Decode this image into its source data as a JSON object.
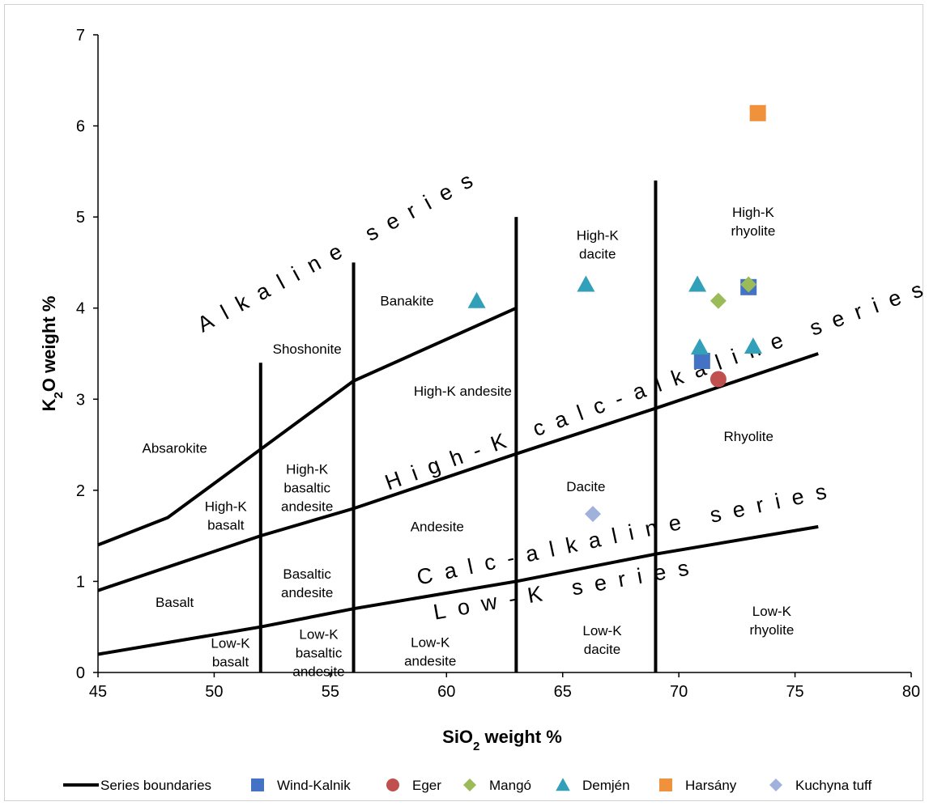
{
  "chart_data": {
    "type": "scatter",
    "xlabel": "SiO₂ weight %",
    "xlabel_main": "SiO",
    "xlabel_sub": "2",
    "xlabel_rest": " weight %",
    "ylabel": "K₂O weight %",
    "ylabel_main": "K",
    "ylabel_sub": "2",
    "ylabel_rest": "O weight %",
    "xlim": [
      45,
      80
    ],
    "ylim": [
      0,
      7
    ],
    "x_ticks": [
      "45",
      "50",
      "55",
      "60",
      "65",
      "70",
      "75",
      "80"
    ],
    "y_ticks": [
      "0",
      "1",
      "2",
      "3",
      "4",
      "5",
      "6",
      "7"
    ],
    "grid": false,
    "legend_position": "bottom",
    "boundaries": {
      "name": "Series boundaries",
      "color": "#000000",
      "lines": [
        [
          [
            45,
            1.4
          ],
          [
            48,
            1.7
          ],
          [
            52,
            2.45
          ],
          [
            56,
            3.2
          ],
          [
            63,
            4.0
          ]
        ],
        [
          [
            45,
            0.9
          ],
          [
            52,
            1.5
          ],
          [
            56,
            1.8
          ],
          [
            63,
            2.4
          ],
          [
            69,
            2.9
          ],
          [
            76,
            3.5
          ]
        ],
        [
          [
            45,
            0.2
          ],
          [
            52,
            0.5
          ],
          [
            56,
            0.7
          ],
          [
            63,
            1.0
          ],
          [
            69,
            1.3
          ],
          [
            76,
            1.6
          ]
        ],
        [
          [
            52,
            0
          ],
          [
            52,
            3.4
          ]
        ],
        [
          [
            56,
            0
          ],
          [
            56,
            4.5
          ]
        ],
        [
          [
            63,
            0
          ],
          [
            63,
            5.0
          ]
        ],
        [
          [
            69,
            0
          ],
          [
            69,
            5.4
          ]
        ]
      ]
    },
    "series": [
      {
        "name": "Wind-Kalnik",
        "marker": "square",
        "color": "#4472c4",
        "points": [
          [
            71.0,
            3.42
          ],
          [
            73.0,
            4.23
          ]
        ]
      },
      {
        "name": "Eger",
        "marker": "circle",
        "color": "#c0504d",
        "points": [
          [
            71.7,
            3.22
          ]
        ]
      },
      {
        "name": "Mangó",
        "marker": "diamond",
        "color": "#9bbb59",
        "points": [
          [
            71.7,
            4.08
          ],
          [
            73.0,
            4.26
          ]
        ]
      },
      {
        "name": "Demjén",
        "marker": "triangle",
        "color": "#31a0b8",
        "points": [
          [
            61.3,
            4.08
          ],
          [
            66.0,
            4.26
          ],
          [
            70.8,
            4.26
          ],
          [
            70.9,
            3.57
          ],
          [
            73.2,
            3.58
          ]
        ]
      },
      {
        "name": "Harsány",
        "marker": "square",
        "color": "#f0923c",
        "points": [
          [
            73.4,
            6.14
          ]
        ]
      },
      {
        "name": "Kuchyna tuff",
        "marker": "diamond",
        "color": "#a0b2dc",
        "points": [
          [
            66.3,
            1.74
          ]
        ]
      }
    ],
    "rock_labels": [
      {
        "lines": [
          "Absarokite"
        ],
        "x": 48.3,
        "y": 2.41
      },
      {
        "lines": [
          "Shoshonite"
        ],
        "x": 54.0,
        "y": 3.5
      },
      {
        "lines": [
          "Banakite"
        ],
        "x": 58.3,
        "y": 4.03
      },
      {
        "lines": [
          "High-K",
          "dacite"
        ],
        "x": 66.5,
        "y": 4.75
      },
      {
        "lines": [
          "High-K",
          "rhyolite"
        ],
        "x": 73.2,
        "y": 5.0
      },
      {
        "lines": [
          "High-K andesite"
        ],
        "x": 60.7,
        "y": 3.04
      },
      {
        "lines": [
          "High-K",
          "basaltic",
          "andesite"
        ],
        "x": 54.0,
        "y": 2.18
      },
      {
        "lines": [
          "High-K",
          "basalt"
        ],
        "x": 50.5,
        "y": 1.77
      },
      {
        "lines": [
          "Dacite"
        ],
        "x": 66.0,
        "y": 1.99
      },
      {
        "lines": [
          "Rhyolite"
        ],
        "x": 73.0,
        "y": 2.54
      },
      {
        "lines": [
          "Andesite"
        ],
        "x": 59.6,
        "y": 1.55
      },
      {
        "lines": [
          "Basaltic",
          "andesite"
        ],
        "x": 54.0,
        "y": 1.03
      },
      {
        "lines": [
          "Basalt"
        ],
        "x": 48.3,
        "y": 0.72
      },
      {
        "lines": [
          "Low-K",
          "basalt"
        ],
        "x": 50.7,
        "y": 0.27
      },
      {
        "lines": [
          "Low-K",
          "basaltic",
          "andesite"
        ],
        "x": 54.5,
        "y": 0.37
      },
      {
        "lines": [
          "Low-K",
          "andesite"
        ],
        "x": 59.3,
        "y": 0.28
      },
      {
        "lines": [
          "Low-K",
          "dacite"
        ],
        "x": 66.7,
        "y": 0.41
      },
      {
        "lines": [
          "Low-K",
          "rhyolite"
        ],
        "x": 74.0,
        "y": 0.62
      }
    ],
    "series_labels": [
      {
        "text": "Alkaline series",
        "x": 49.5,
        "y": 3.73,
        "angle": -28.5
      },
      {
        "text": "High-K calc-alkaline series",
        "x": 57.5,
        "y": 2.0,
        "angle": -20
      },
      {
        "text": "Calc-alkaline series",
        "x": 58.8,
        "y": 0.96,
        "angle": -12
      },
      {
        "text": "Low-K series",
        "x": 59.5,
        "y": 0.58,
        "angle": -10
      }
    ]
  }
}
